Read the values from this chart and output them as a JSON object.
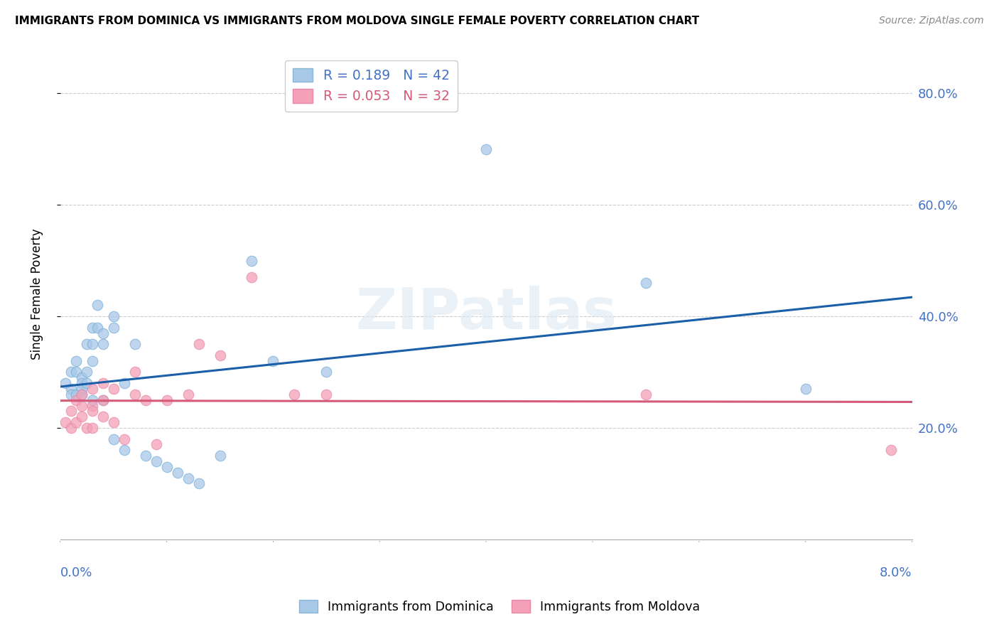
{
  "title": "IMMIGRANTS FROM DOMINICA VS IMMIGRANTS FROM MOLDOVA SINGLE FEMALE POVERTY CORRELATION CHART",
  "source": "Source: ZipAtlas.com",
  "ylabel": "Single Female Poverty",
  "xmin": 0.0,
  "xmax": 0.08,
  "ymin": 0.0,
  "ymax": 0.88,
  "yticks": [
    0.2,
    0.4,
    0.6,
    0.8
  ],
  "ytick_labels": [
    "20.0%",
    "40.0%",
    "60.0%",
    "80.0%"
  ],
  "dominica_color": "#a8c8e8",
  "moldova_color": "#f4a0b8",
  "dominica_line_color": "#1a5fa8",
  "moldova_line_color": "#d45a78",
  "watermark_text": "ZIPatlas",
  "R_dominica": 0.189,
  "N_dominica": 42,
  "R_moldova": 0.053,
  "N_moldova": 32,
  "dominica_x": [
    0.0005,
    0.001,
    0.001,
    0.001,
    0.0015,
    0.0015,
    0.0015,
    0.002,
    0.002,
    0.002,
    0.002,
    0.0025,
    0.0025,
    0.0025,
    0.003,
    0.003,
    0.003,
    0.003,
    0.0035,
    0.0035,
    0.004,
    0.004,
    0.004,
    0.005,
    0.005,
    0.005,
    0.006,
    0.006,
    0.007,
    0.008,
    0.009,
    0.01,
    0.011,
    0.012,
    0.013,
    0.015,
    0.018,
    0.02,
    0.025,
    0.04,
    0.055,
    0.07
  ],
  "dominica_y": [
    0.28,
    0.3,
    0.27,
    0.26,
    0.32,
    0.3,
    0.26,
    0.29,
    0.28,
    0.27,
    0.26,
    0.35,
    0.3,
    0.28,
    0.38,
    0.35,
    0.32,
    0.25,
    0.42,
    0.38,
    0.37,
    0.35,
    0.25,
    0.4,
    0.38,
    0.18,
    0.28,
    0.16,
    0.35,
    0.15,
    0.14,
    0.13,
    0.12,
    0.11,
    0.1,
    0.15,
    0.5,
    0.32,
    0.3,
    0.7,
    0.46,
    0.27
  ],
  "moldova_x": [
    0.0005,
    0.001,
    0.001,
    0.0015,
    0.0015,
    0.002,
    0.002,
    0.002,
    0.0025,
    0.003,
    0.003,
    0.003,
    0.003,
    0.004,
    0.004,
    0.004,
    0.005,
    0.005,
    0.006,
    0.007,
    0.007,
    0.008,
    0.009,
    0.01,
    0.012,
    0.013,
    0.015,
    0.018,
    0.022,
    0.025,
    0.055,
    0.078
  ],
  "moldova_y": [
    0.21,
    0.23,
    0.2,
    0.25,
    0.21,
    0.26,
    0.24,
    0.22,
    0.2,
    0.27,
    0.24,
    0.23,
    0.2,
    0.28,
    0.25,
    0.22,
    0.27,
    0.21,
    0.18,
    0.3,
    0.26,
    0.25,
    0.17,
    0.25,
    0.26,
    0.35,
    0.33,
    0.47,
    0.26,
    0.26,
    0.26,
    0.16
  ]
}
